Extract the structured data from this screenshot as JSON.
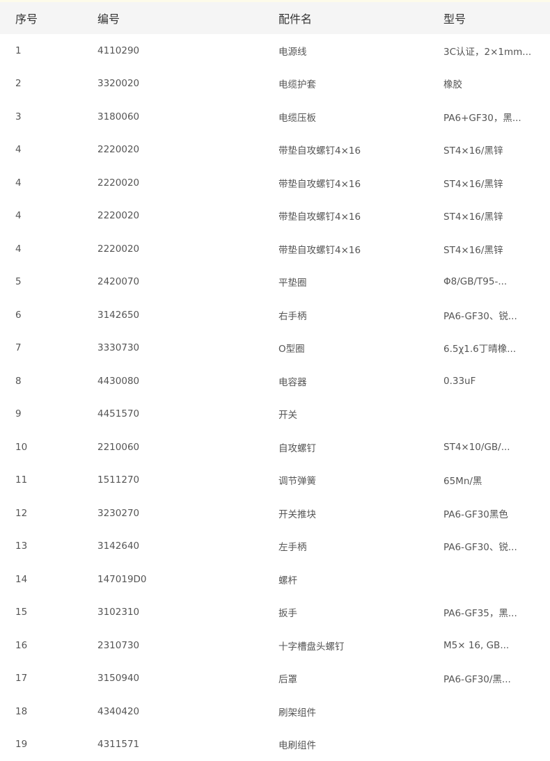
{
  "table": {
    "headers": [
      "序号",
      "编号",
      "配件名",
      "型号"
    ],
    "rows": [
      [
        "1",
        "4110290",
        "电源线",
        "3C认证，2×1mm..."
      ],
      [
        "2",
        "3320020",
        "电缆护套",
        "橡胶"
      ],
      [
        "3",
        "3180060",
        "电缆压板",
        "PA6+GF30，黑..."
      ],
      [
        "4",
        "2220020",
        "带垫自攻螺钉4×16",
        "ST4×16/黑锌"
      ],
      [
        "4",
        "2220020",
        "带垫自攻螺钉4×16",
        "ST4×16/黑锌"
      ],
      [
        "4",
        "2220020",
        "带垫自攻螺钉4×16",
        "ST4×16/黑锌"
      ],
      [
        "4",
        "2220020",
        "带垫自攻螺钉4×16",
        "ST4×16/黑锌"
      ],
      [
        "5",
        "2420070",
        "平垫圈",
        "Φ8/GB/T95-..."
      ],
      [
        "6",
        "3142650",
        "右手柄",
        "PA6-GF30、锐..."
      ],
      [
        "7",
        "3330730",
        "O型圈",
        "6.5χ1.6丁晴橡..."
      ],
      [
        "8",
        "4430080",
        "电容器",
        "0.33uF"
      ],
      [
        "9",
        "4451570",
        "开关",
        ""
      ],
      [
        "10",
        "2210060",
        "自攻螺钉",
        "ST4×10/GB/..."
      ],
      [
        "11",
        "1511270",
        "调节弹簧",
        "65Mn/黑"
      ],
      [
        "12",
        "3230270",
        "开关推块",
        "PA6-GF30黑色"
      ],
      [
        "13",
        "3142640",
        "左手柄",
        "PA6-GF30、锐..."
      ],
      [
        "14",
        "147019D0",
        "螺杆",
        ""
      ],
      [
        "15",
        "3102310",
        "扳手",
        "PA6-GF35，黑..."
      ],
      [
        "16",
        "2310730",
        "十字槽盘头螺钉",
        "M5× 16, GB..."
      ],
      [
        "17",
        "3150940",
        "后罩",
        "PA6-GF30/黑..."
      ],
      [
        "18",
        "4340420",
        "刷架组件",
        ""
      ],
      [
        "19",
        "4311571",
        "电刷组件",
        ""
      ]
    ]
  }
}
